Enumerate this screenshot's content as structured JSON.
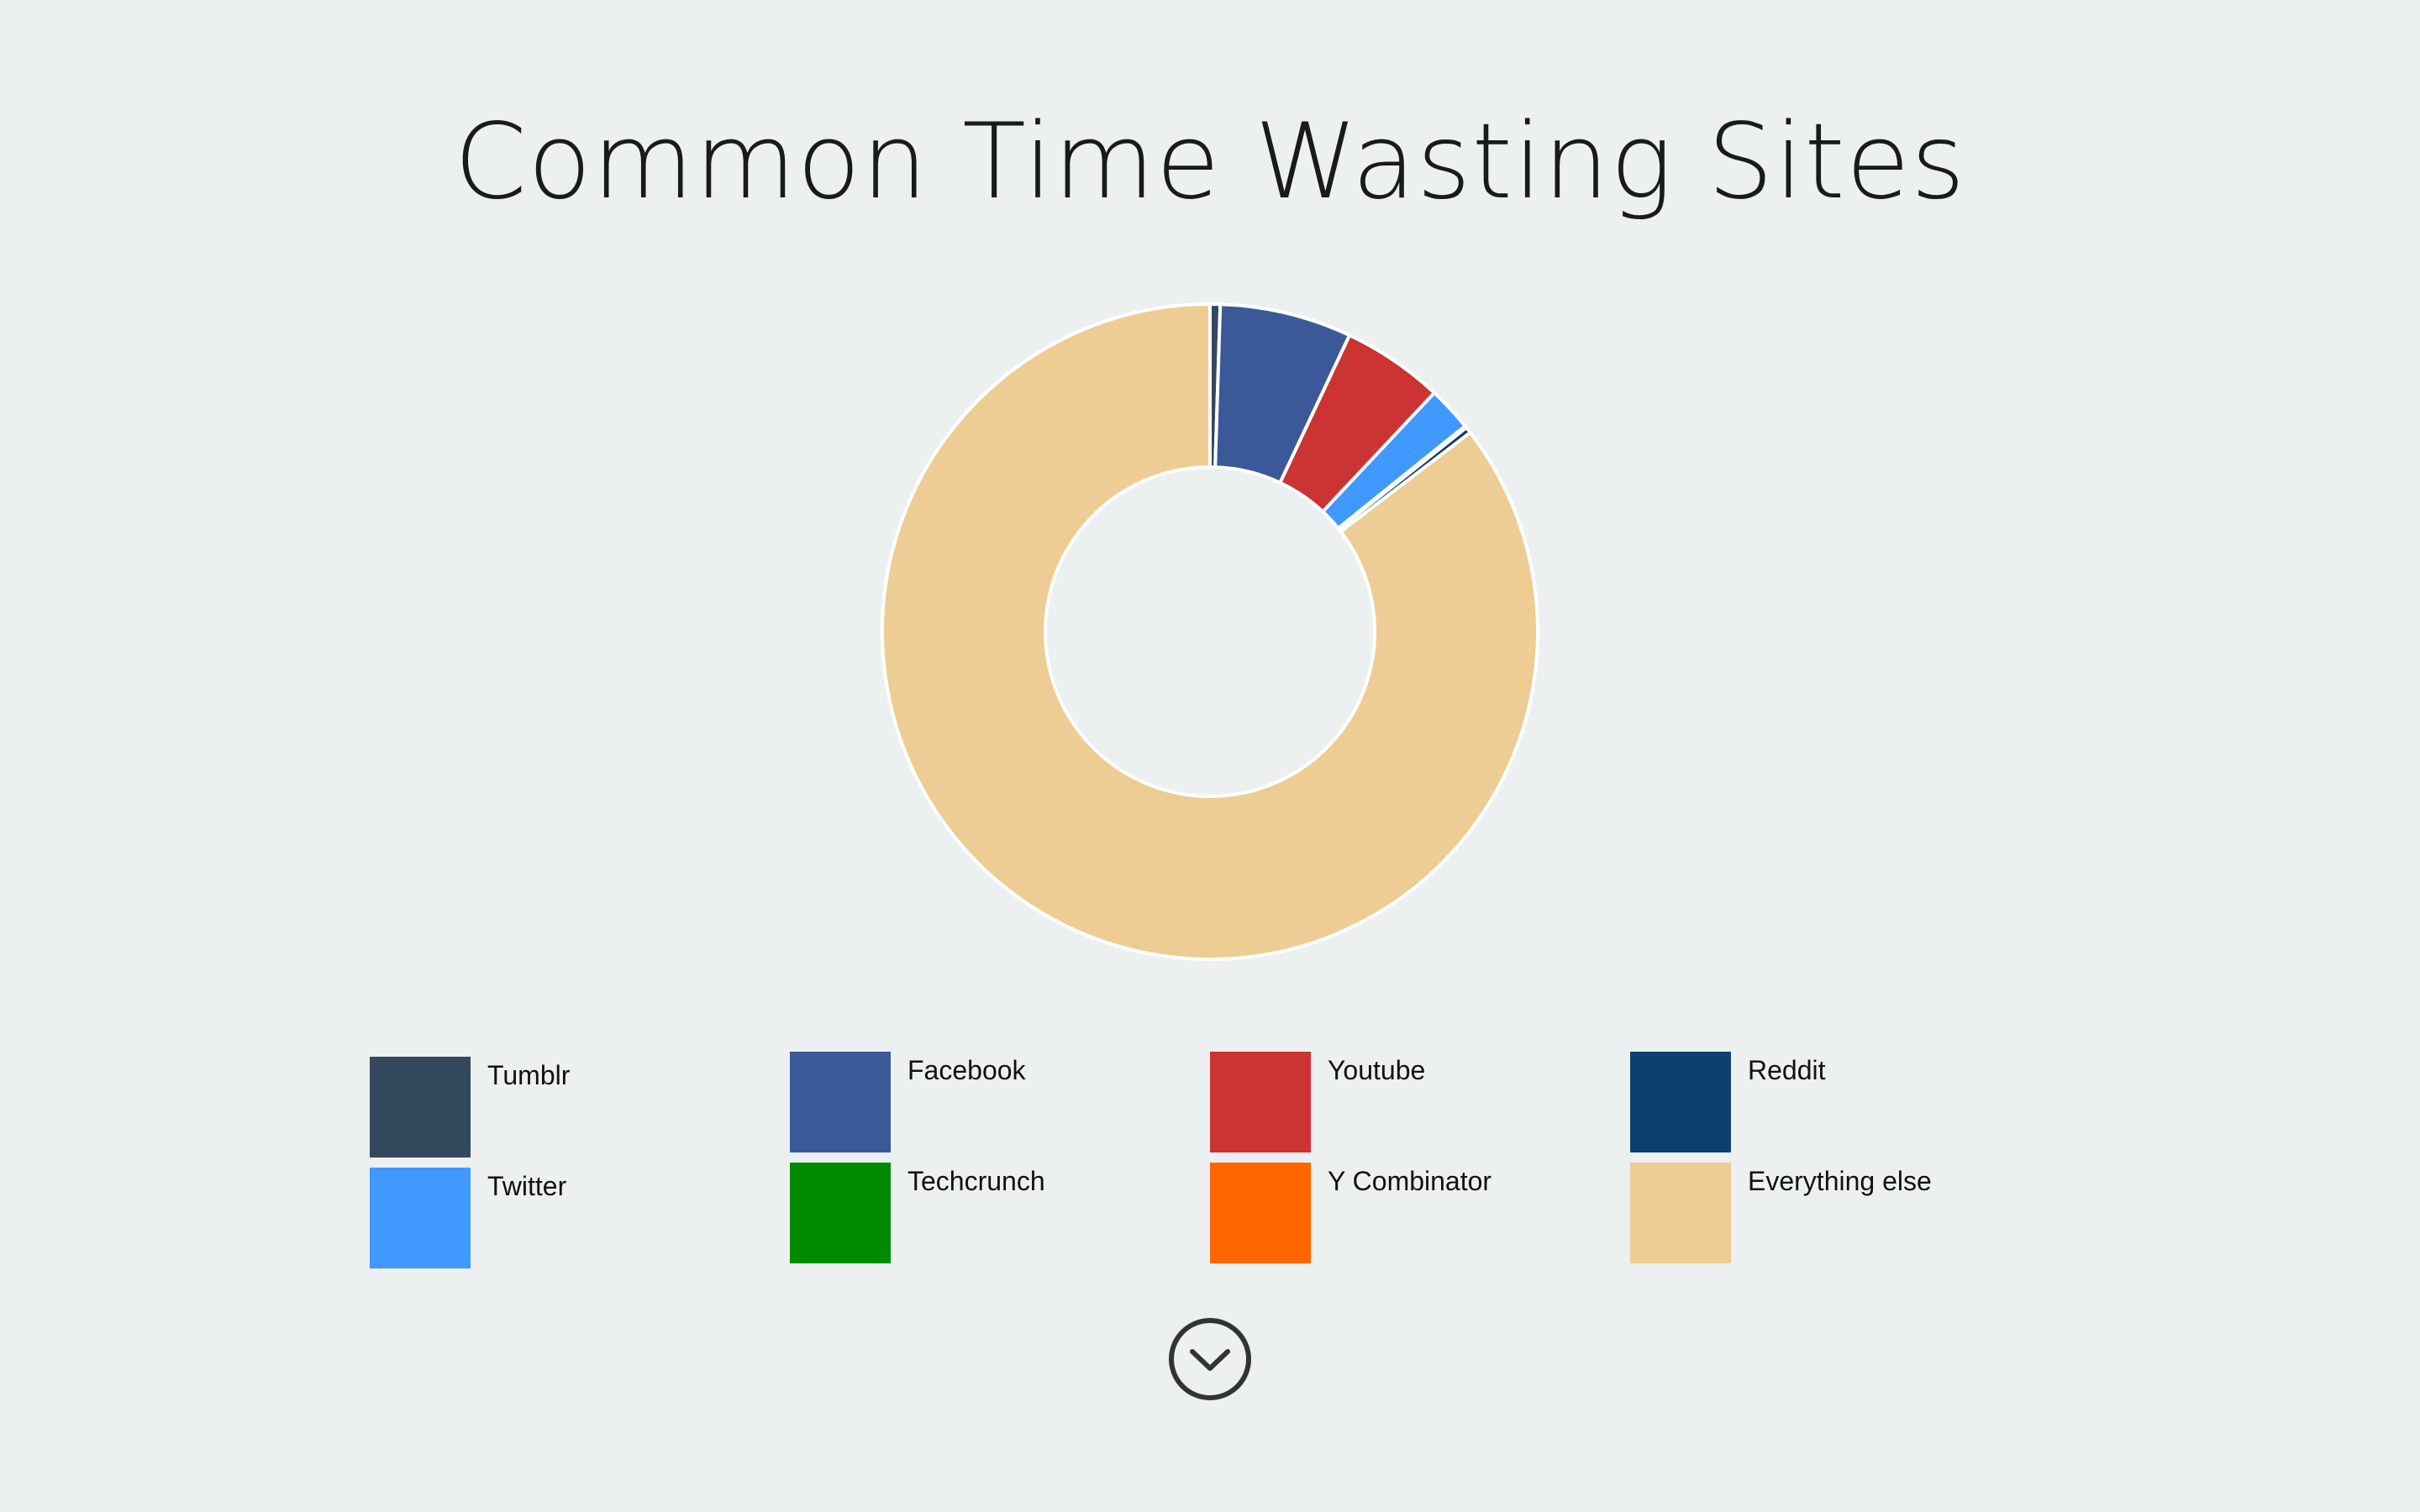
{
  "chart_data": {
    "type": "pie",
    "title": "Common Time Wasting Sites",
    "donut": true,
    "categories": [
      "Tumblr",
      "Facebook",
      "Youtube",
      "Twitter",
      "Techcrunch",
      "Y Combinator",
      "Reddit",
      "Everything else"
    ],
    "values": [
      0.5,
      6.5,
      5.0,
      2.2,
      0.05,
      0.05,
      0.3,
      85.4
    ],
    "colors": [
      "#34495e",
      "#3b5998",
      "#cc3333",
      "#4099ff",
      "#008a00",
      "#ff6600",
      "#0f3f6e",
      "#edcd93"
    ],
    "legend": {
      "placement": "bottom",
      "items": [
        {
          "label": "Tumblr",
          "color": "#34495e"
        },
        {
          "label": "Facebook",
          "color": "#3b5998"
        },
        {
          "label": "Youtube",
          "color": "#cc3333"
        },
        {
          "label": "Reddit",
          "color": "#0f3f6e"
        },
        {
          "label": "Twitter",
          "color": "#4099ff"
        },
        {
          "label": "Techcrunch",
          "color": "#008a00"
        },
        {
          "label": "Y Combinator",
          "color": "#ff6600"
        },
        {
          "label": "Everything else",
          "color": "#edcd93"
        }
      ]
    }
  },
  "scroll_button": {
    "icon": "chevron-down-circle-icon"
  }
}
